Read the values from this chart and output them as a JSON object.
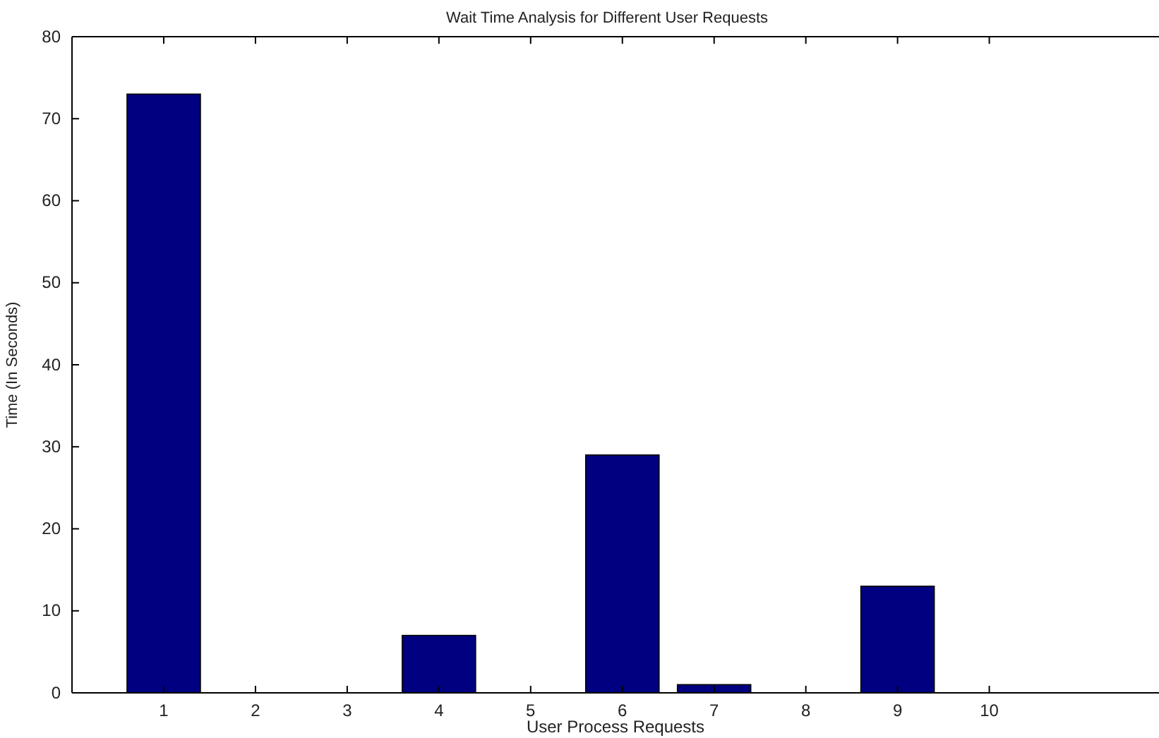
{
  "chart_data": {
    "type": "bar",
    "title": "Wait Time Analysis for Different User Requests",
    "xlabel": "User Process Requests",
    "ylabel": "Time (In Seconds)",
    "x": [
      1,
      2,
      3,
      4,
      5,
      6,
      7,
      8,
      9,
      10
    ],
    "values": [
      73,
      0,
      0,
      7,
      0,
      29,
      1,
      0,
      13,
      0
    ],
    "color": "#000080",
    "xlim": [
      0,
      11.85
    ],
    "xticks": [
      1,
      2,
      3,
      4,
      5,
      6,
      7,
      8,
      9,
      10
    ],
    "ylim": [
      0,
      80
    ],
    "yticks": [
      0,
      10,
      20,
      30,
      40,
      50,
      60,
      70,
      80
    ],
    "grid": false
  }
}
